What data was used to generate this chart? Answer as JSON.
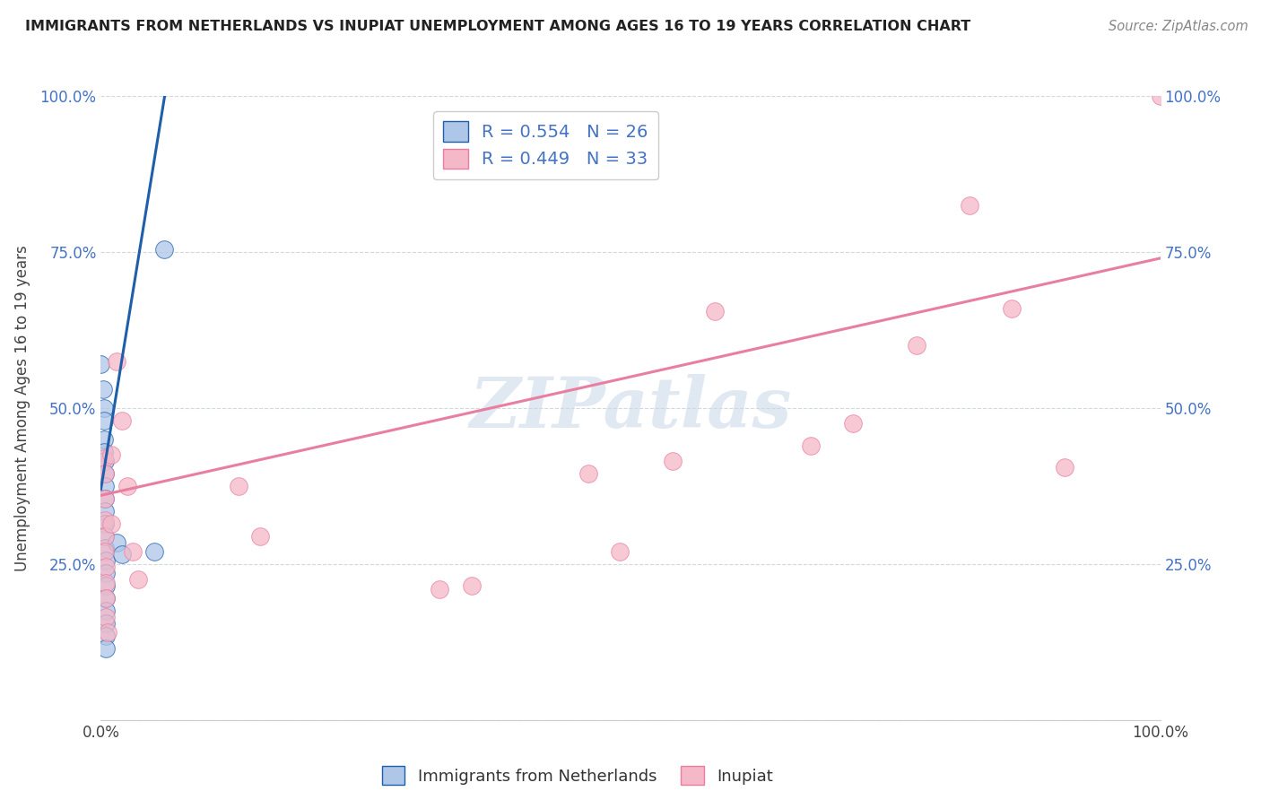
{
  "title": "IMMIGRANTS FROM NETHERLANDS VS INUPIAT UNEMPLOYMENT AMONG AGES 16 TO 19 YEARS CORRELATION CHART",
  "source": "Source: ZipAtlas.com",
  "ylabel": "Unemployment Among Ages 16 to 19 years",
  "xlim": [
    0.0,
    1.0
  ],
  "ylim": [
    0.0,
    1.0
  ],
  "xticks": [
    0.0,
    0.25,
    0.5,
    0.75,
    1.0
  ],
  "xticklabels": [
    "0.0%",
    "",
    "",
    "",
    "100.0%"
  ],
  "yticks": [
    0.0,
    0.25,
    0.5,
    0.75,
    1.0
  ],
  "yticklabels": [
    "",
    "25.0%",
    "50.0%",
    "75.0%",
    "100.0%"
  ],
  "legend1_label": "R = 0.554   N = 26",
  "legend2_label": "R = 0.449   N = 33",
  "legend1_color": "#aec6e8",
  "legend2_color": "#f4b8c8",
  "line1_color": "#1f5faa",
  "line2_color": "#e87fa0",
  "watermark": "ZIPatlas",
  "watermark_color": "#c8d8e8",
  "blue_dots": [
    [
      0.0,
      0.57
    ],
    [
      0.002,
      0.53
    ],
    [
      0.003,
      0.5
    ],
    [
      0.003,
      0.48
    ],
    [
      0.003,
      0.45
    ],
    [
      0.003,
      0.43
    ],
    [
      0.004,
      0.415
    ],
    [
      0.004,
      0.395
    ],
    [
      0.004,
      0.375
    ],
    [
      0.004,
      0.355
    ],
    [
      0.004,
      0.335
    ],
    [
      0.004,
      0.315
    ],
    [
      0.004,
      0.295
    ],
    [
      0.004,
      0.275
    ],
    [
      0.005,
      0.255
    ],
    [
      0.005,
      0.235
    ],
    [
      0.005,
      0.215
    ],
    [
      0.005,
      0.195
    ],
    [
      0.005,
      0.175
    ],
    [
      0.005,
      0.155
    ],
    [
      0.005,
      0.135
    ],
    [
      0.005,
      0.115
    ],
    [
      0.015,
      0.285
    ],
    [
      0.02,
      0.265
    ],
    [
      0.05,
      0.27
    ],
    [
      0.06,
      0.755
    ]
  ],
  "pink_dots": [
    [
      0.003,
      0.42
    ],
    [
      0.004,
      0.395
    ],
    [
      0.004,
      0.355
    ],
    [
      0.004,
      0.32
    ],
    [
      0.004,
      0.295
    ],
    [
      0.004,
      0.27
    ],
    [
      0.005,
      0.245
    ],
    [
      0.005,
      0.22
    ],
    [
      0.005,
      0.195
    ],
    [
      0.005,
      0.165
    ],
    [
      0.006,
      0.14
    ],
    [
      0.01,
      0.425
    ],
    [
      0.01,
      0.315
    ],
    [
      0.015,
      0.575
    ],
    [
      0.02,
      0.48
    ],
    [
      0.025,
      0.375
    ],
    [
      0.03,
      0.27
    ],
    [
      0.035,
      0.225
    ],
    [
      0.13,
      0.375
    ],
    [
      0.15,
      0.295
    ],
    [
      0.32,
      0.21
    ],
    [
      0.35,
      0.215
    ],
    [
      0.46,
      0.395
    ],
    [
      0.49,
      0.27
    ],
    [
      0.54,
      0.415
    ],
    [
      0.58,
      0.655
    ],
    [
      0.67,
      0.44
    ],
    [
      0.71,
      0.475
    ],
    [
      0.77,
      0.6
    ],
    [
      0.82,
      0.825
    ],
    [
      0.86,
      0.66
    ],
    [
      0.91,
      0.405
    ],
    [
      1.0,
      1.0
    ]
  ],
  "blue_line": [
    [
      0.0,
      0.37
    ],
    [
      0.065,
      1.05
    ]
  ],
  "pink_line": [
    [
      0.0,
      0.36
    ],
    [
      1.0,
      0.74
    ]
  ],
  "background_color": "#ffffff",
  "grid_color": "#d0d8e0"
}
